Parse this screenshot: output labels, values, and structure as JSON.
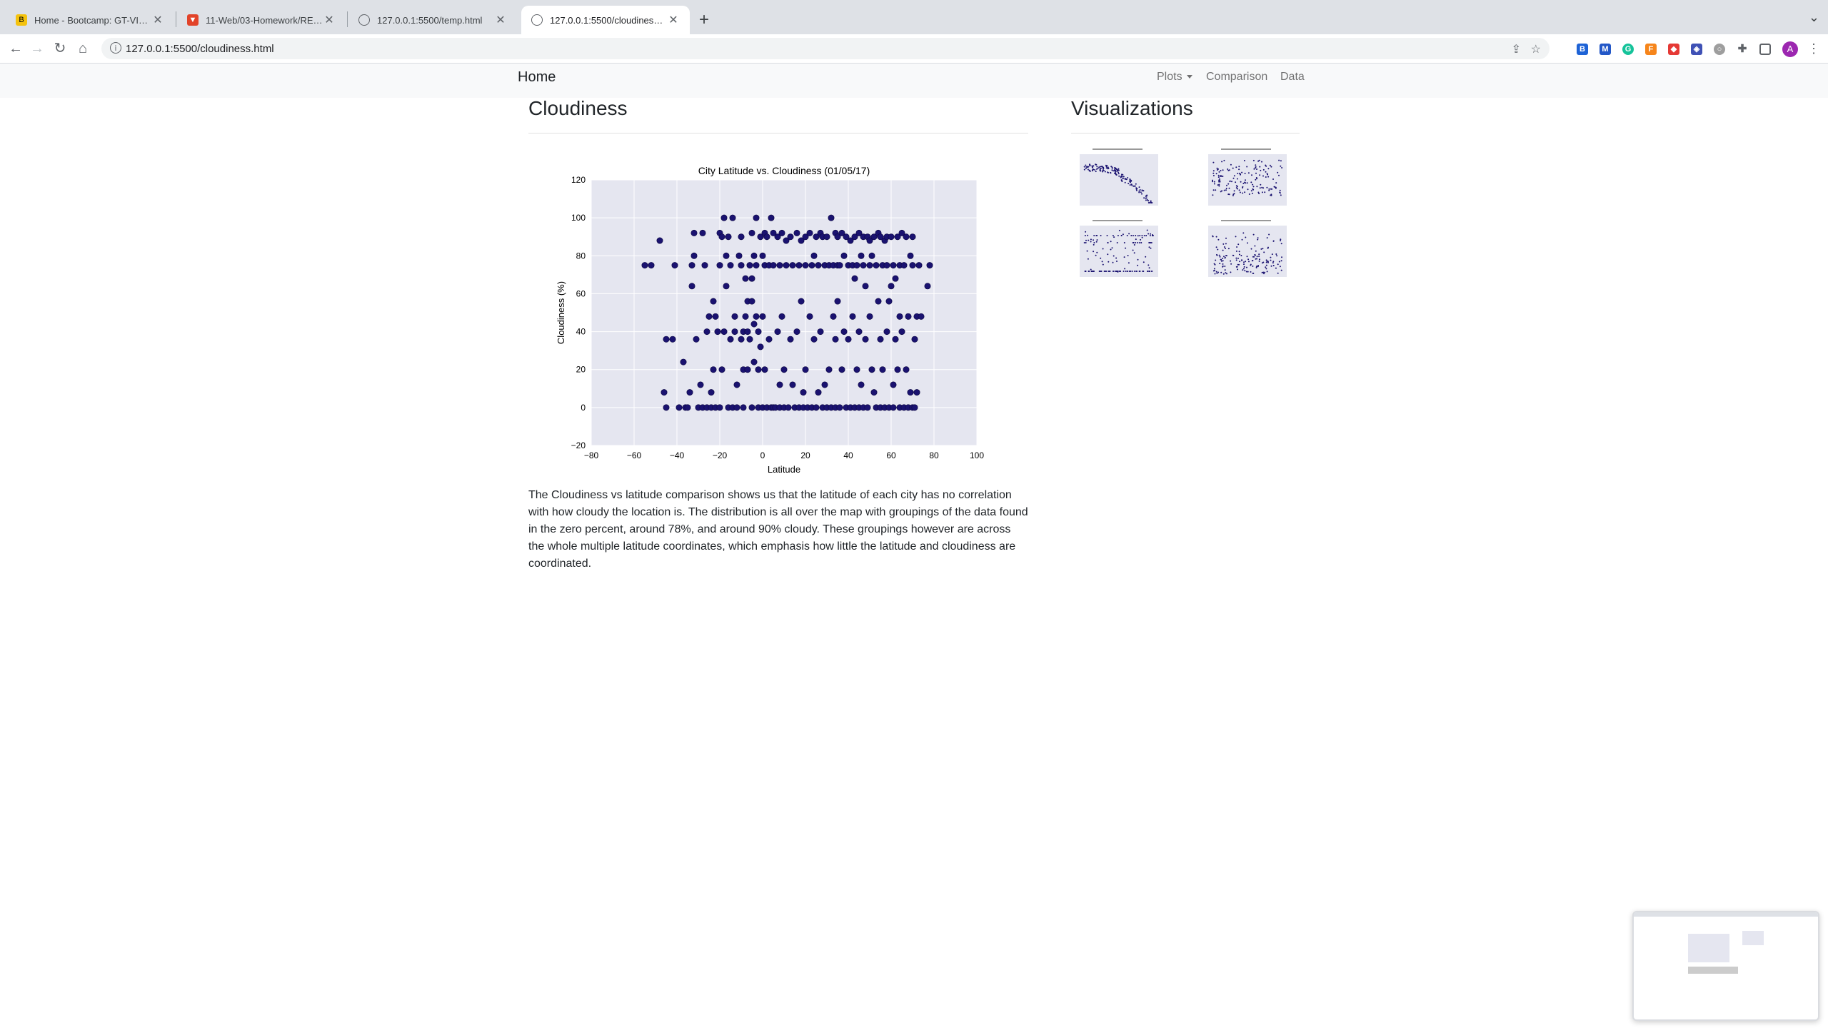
{
  "browser": {
    "tabs": [
      {
        "title": "Home - Bootcamp: GT-VIRT-D",
        "favicon": "bootcamp-icon"
      },
      {
        "title": "11-Web/03-Homework/READM",
        "favicon": "gitlab-icon"
      },
      {
        "title": "127.0.0.1:5500/temp.html",
        "favicon": "globe-icon"
      },
      {
        "title": "127.0.0.1:5500/cloudiness.htm",
        "favicon": "globe-icon"
      }
    ],
    "active_tab": 3,
    "url": "127.0.0.1:5500/cloudiness.html",
    "avatar_letter": "A"
  },
  "navbar": {
    "brand": "Home",
    "links": [
      "Plots",
      "Comparison",
      "Data"
    ]
  },
  "main": {
    "heading": "Cloudiness",
    "paragraph": "The Cloudiness vs latitude comparison shows us that the latitude of each city has no correlation with how cloudy the location is. The distribution is all over the map with groupings of the data found in the zero percent, around 78%, and around 90% cloudy. These groupings however are across the whole multiple latitude coordinates, which emphasis how little the latitude and cloudiness are coordinated."
  },
  "sidebar": {
    "heading": "Visualizations",
    "thumbnails": [
      "Temperature plot thumbnail",
      "Humidity plot thumbnail",
      "Cloudiness plot thumbnail",
      "Wind speed plot thumbnail"
    ]
  },
  "chart_data": {
    "type": "scatter",
    "title": "City Latitude vs. Cloudiness (01/05/17)",
    "xlabel": "Latitude",
    "ylabel": "Cloudiness (%)",
    "xlim": [
      -80,
      100
    ],
    "ylim": [
      -20,
      120
    ],
    "xticks": [
      -80,
      -60,
      -40,
      -20,
      0,
      20,
      40,
      60,
      80,
      100
    ],
    "yticks": [
      -20,
      0,
      20,
      40,
      60,
      80,
      100,
      120
    ],
    "grid": true,
    "color": "#1a1270",
    "background": "#e5e6f0",
    "points": [
      [
        -55,
        75
      ],
      [
        -52,
        75
      ],
      [
        -48,
        88
      ],
      [
        -46,
        8
      ],
      [
        -45,
        36
      ],
      [
        -45,
        0
      ],
      [
        -42,
        36
      ],
      [
        -41,
        75
      ],
      [
        -39,
        0
      ],
      [
        -37,
        24
      ],
      [
        -36,
        0
      ],
      [
        -35,
        0
      ],
      [
        -34,
        8
      ],
      [
        -33,
        75
      ],
      [
        -33,
        64
      ],
      [
        -32,
        92
      ],
      [
        -32,
        80
      ],
      [
        -31,
        36
      ],
      [
        -30,
        0
      ],
      [
        -29,
        12
      ],
      [
        -28,
        92
      ],
      [
        -28,
        0
      ],
      [
        -27,
        75
      ],
      [
        -26,
        40
      ],
      [
        -26,
        0
      ],
      [
        -25,
        48
      ],
      [
        -24,
        8
      ],
      [
        -24,
        0
      ],
      [
        -23,
        56
      ],
      [
        -23,
        20
      ],
      [
        -22,
        48
      ],
      [
        -22,
        0
      ],
      [
        -21,
        40
      ],
      [
        -20,
        92
      ],
      [
        -20,
        75
      ],
      [
        -20,
        0
      ],
      [
        -19,
        90
      ],
      [
        -19,
        20
      ],
      [
        -18,
        100
      ],
      [
        -18,
        40
      ],
      [
        -17,
        80
      ],
      [
        -17,
        64
      ],
      [
        -16,
        90
      ],
      [
        -16,
        0
      ],
      [
        -15,
        75
      ],
      [
        -15,
        36
      ],
      [
        -14,
        100
      ],
      [
        -14,
        0
      ],
      [
        -13,
        48
      ],
      [
        -13,
        40
      ],
      [
        -12,
        12
      ],
      [
        -12,
        0
      ],
      [
        -11,
        80
      ],
      [
        -10,
        90
      ],
      [
        -10,
        75
      ],
      [
        -10,
        36
      ],
      [
        -9,
        40
      ],
      [
        -9,
        20
      ],
      [
        -9,
        0
      ],
      [
        -8,
        68
      ],
      [
        -8,
        48
      ],
      [
        -7,
        56
      ],
      [
        -7,
        40
      ],
      [
        -7,
        20
      ],
      [
        -6,
        75
      ],
      [
        -6,
        36
      ],
      [
        -5,
        92
      ],
      [
        -5,
        68
      ],
      [
        -5,
        56
      ],
      [
        -5,
        0
      ],
      [
        -4,
        80
      ],
      [
        -4,
        44
      ],
      [
        -4,
        24
      ],
      [
        -3,
        100
      ],
      [
        -3,
        75
      ],
      [
        -3,
        48
      ],
      [
        -2,
        40
      ],
      [
        -2,
        20
      ],
      [
        -2,
        0
      ],
      [
        -1,
        90
      ],
      [
        -1,
        32
      ],
      [
        0,
        80
      ],
      [
        0,
        48
      ],
      [
        0,
        0
      ],
      [
        1,
        92
      ],
      [
        1,
        75
      ],
      [
        1,
        20
      ],
      [
        2,
        90
      ],
      [
        2,
        0
      ],
      [
        3,
        75
      ],
      [
        3,
        36
      ],
      [
        4,
        100
      ],
      [
        4,
        0
      ],
      [
        5,
        92
      ],
      [
        5,
        75
      ],
      [
        5,
        0
      ],
      [
        6,
        0
      ],
      [
        7,
        90
      ],
      [
        7,
        40
      ],
      [
        8,
        75
      ],
      [
        8,
        12
      ],
      [
        8,
        0
      ],
      [
        9,
        92
      ],
      [
        9,
        48
      ],
      [
        10,
        20
      ],
      [
        10,
        0
      ],
      [
        11,
        88
      ],
      [
        11,
        75
      ],
      [
        12,
        0
      ],
      [
        13,
        90
      ],
      [
        13,
        36
      ],
      [
        14,
        75
      ],
      [
        14,
        12
      ],
      [
        15,
        0
      ],
      [
        16,
        92
      ],
      [
        16,
        40
      ],
      [
        17,
        75
      ],
      [
        17,
        0
      ],
      [
        18,
        88
      ],
      [
        18,
        56
      ],
      [
        19,
        8
      ],
      [
        19,
        0
      ],
      [
        20,
        90
      ],
      [
        20,
        75
      ],
      [
        20,
        20
      ],
      [
        21,
        0
      ],
      [
        22,
        92
      ],
      [
        22,
        48
      ],
      [
        23,
        75
      ],
      [
        23,
        0
      ],
      [
        24,
        80
      ],
      [
        24,
        36
      ],
      [
        25,
        90
      ],
      [
        25,
        0
      ],
      [
        26,
        75
      ],
      [
        26,
        8
      ],
      [
        27,
        92
      ],
      [
        27,
        40
      ],
      [
        28,
        90
      ],
      [
        28,
        0
      ],
      [
        29,
        75
      ],
      [
        29,
        12
      ],
      [
        30,
        90
      ],
      [
        30,
        0
      ],
      [
        31,
        75
      ],
      [
        31,
        20
      ],
      [
        32,
        100
      ],
      [
        32,
        0
      ],
      [
        33,
        75
      ],
      [
        33,
        48
      ],
      [
        34,
        92
      ],
      [
        34,
        36
      ],
      [
        34,
        0
      ],
      [
        35,
        90
      ],
      [
        35,
        75
      ],
      [
        35,
        56
      ],
      [
        36,
        75
      ],
      [
        36,
        0
      ],
      [
        37,
        92
      ],
      [
        37,
        20
      ],
      [
        38,
        80
      ],
      [
        38,
        40
      ],
      [
        39,
        90
      ],
      [
        39,
        0
      ],
      [
        40,
        75
      ],
      [
        40,
        36
      ],
      [
        41,
        88
      ],
      [
        41,
        0
      ],
      [
        42,
        75
      ],
      [
        42,
        48
      ],
      [
        43,
        90
      ],
      [
        43,
        68
      ],
      [
        43,
        0
      ],
      [
        44,
        75
      ],
      [
        44,
        20
      ],
      [
        45,
        92
      ],
      [
        45,
        40
      ],
      [
        45,
        0
      ],
      [
        46,
        80
      ],
      [
        46,
        12
      ],
      [
        47,
        90
      ],
      [
        47,
        75
      ],
      [
        47,
        0
      ],
      [
        48,
        64
      ],
      [
        48,
        36
      ],
      [
        49,
        90
      ],
      [
        49,
        0
      ],
      [
        50,
        88
      ],
      [
        50,
        75
      ],
      [
        50,
        48
      ],
      [
        51,
        80
      ],
      [
        51,
        20
      ],
      [
        52,
        90
      ],
      [
        52,
        8
      ],
      [
        53,
        75
      ],
      [
        53,
        0
      ],
      [
        54,
        92
      ],
      [
        54,
        56
      ],
      [
        55,
        90
      ],
      [
        55,
        36
      ],
      [
        55,
        0
      ],
      [
        56,
        75
      ],
      [
        56,
        20
      ],
      [
        57,
        88
      ],
      [
        57,
        0
      ],
      [
        58,
        90
      ],
      [
        58,
        75
      ],
      [
        58,
        40
      ],
      [
        59,
        56
      ],
      [
        59,
        0
      ],
      [
        60,
        90
      ],
      [
        60,
        64
      ],
      [
        61,
        75
      ],
      [
        61,
        12
      ],
      [
        61,
        0
      ],
      [
        62,
        68
      ],
      [
        62,
        36
      ],
      [
        63,
        90
      ],
      [
        63,
        20
      ],
      [
        64,
        75
      ],
      [
        64,
        48
      ],
      [
        64,
        0
      ],
      [
        65,
        92
      ],
      [
        65,
        40
      ],
      [
        66,
        75
      ],
      [
        66,
        0
      ],
      [
        67,
        90
      ],
      [
        67,
        20
      ],
      [
        68,
        48
      ],
      [
        68,
        0
      ],
      [
        69,
        80
      ],
      [
        69,
        8
      ],
      [
        70,
        90
      ],
      [
        70,
        75
      ],
      [
        70,
        0
      ],
      [
        71,
        36
      ],
      [
        71,
        0
      ],
      [
        72,
        48
      ],
      [
        72,
        8
      ],
      [
        73,
        75
      ],
      [
        74,
        48
      ],
      [
        77,
        64
      ],
      [
        78,
        75
      ]
    ]
  }
}
